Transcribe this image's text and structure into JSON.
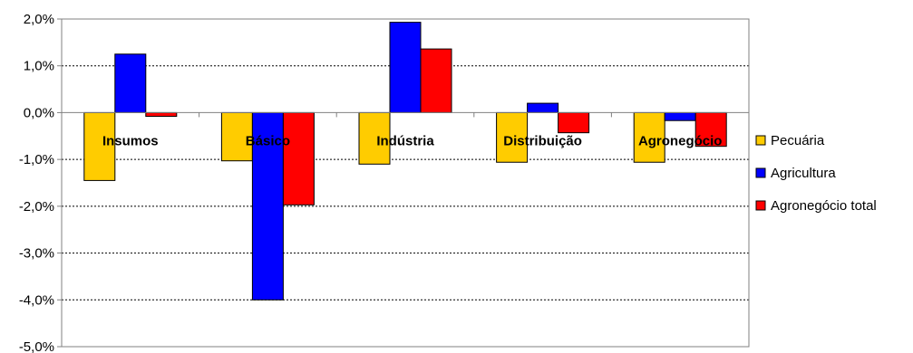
{
  "chart_data": {
    "type": "bar",
    "categories": [
      "Insumos",
      "Básico",
      "Indústria",
      "Distribuição",
      "Agronegócio"
    ],
    "series": [
      {
        "name": "Pecuária",
        "color": "#FFCC00",
        "values": [
          -1.45,
          -1.03,
          -1.1,
          -1.06,
          -1.06
        ]
      },
      {
        "name": "Agricultura",
        "color": "#0000FF",
        "values": [
          1.25,
          -4.0,
          1.93,
          0.2,
          -0.17
        ]
      },
      {
        "name": "Agronegócio total",
        "color": "#FF0000",
        "values": [
          -0.08,
          -1.97,
          1.36,
          -0.43,
          -0.72
        ]
      }
    ],
    "ylim": [
      -5,
      2
    ],
    "yticks": [
      "2,0%",
      "1,0%",
      "0,0%",
      "-1,0%",
      "-2,0%",
      "-3,0%",
      "-4,0%",
      "-5,0%"
    ],
    "ytick_values": [
      2,
      1,
      0,
      -1,
      -2,
      -3,
      -4,
      -5
    ],
    "grid": true,
    "legend_position": "right",
    "title": "",
    "xlabel": "",
    "ylabel": ""
  }
}
